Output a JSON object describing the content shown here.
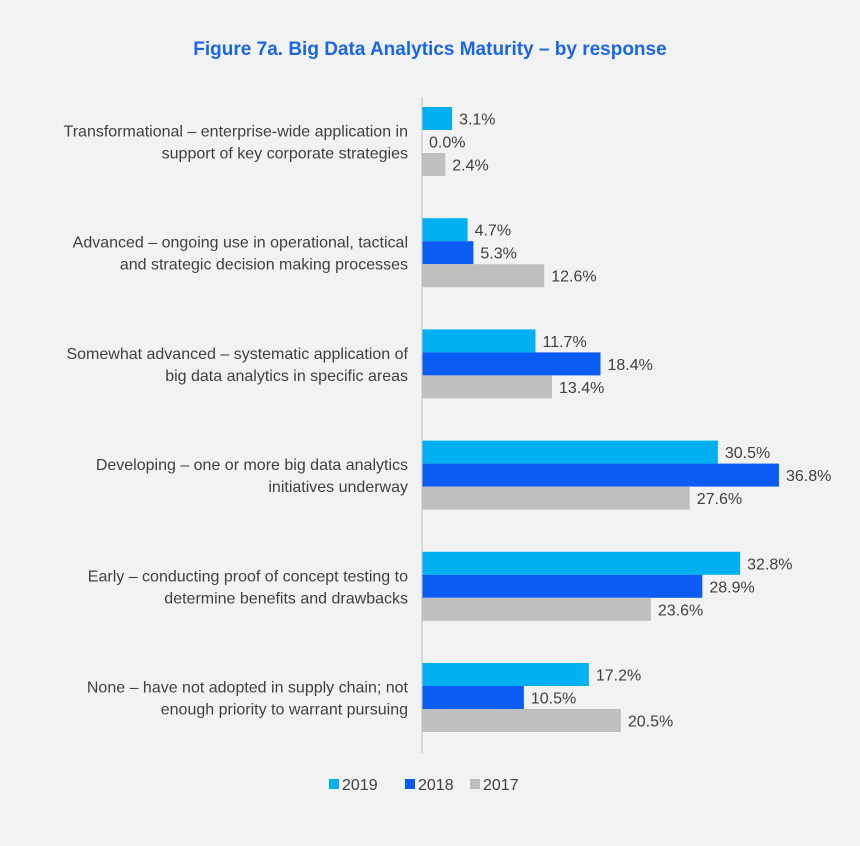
{
  "chart_data": {
    "type": "bar",
    "orientation": "horizontal",
    "title": "Figure 7a. Big Data Analytics Maturity – by response",
    "categories": [
      [
        "Transformational – enterprise-wide application in",
        "support of key corporate strategies"
      ],
      [
        "Advanced – ongoing use in operational, tactical",
        "and strategic decision making processes"
      ],
      [
        "Somewhat advanced – systematic application of",
        "big data analytics in specific areas"
      ],
      [
        "Developing – one or more big data analytics",
        "initiatives underway"
      ],
      [
        "Early – conducting proof of concept testing to",
        "determine benefits and drawbacks"
      ],
      [
        "None  – have not adopted in supply chain; not",
        "enough priority to warrant pursuing"
      ]
    ],
    "series": [
      {
        "name": "2019",
        "color": "#00b0f0",
        "values": [
          3.1,
          4.7,
          11.7,
          30.5,
          32.8,
          17.2
        ]
      },
      {
        "name": "2018",
        "color": "#0a5cf5",
        "values": [
          0.0,
          5.3,
          18.4,
          36.8,
          28.9,
          10.5
        ]
      },
      {
        "name": "2017",
        "color": "#bfbfbf",
        "values": [
          2.4,
          12.6,
          13.4,
          27.6,
          23.6,
          20.5
        ]
      }
    ],
    "value_suffix": "%",
    "xlim": [
      0,
      40
    ],
    "grid": false,
    "legend_position": "bottom"
  },
  "colors": {
    "title": "#1a66e6",
    "label_text": "#404040",
    "axis": "#bfbfbf",
    "background": "#f2f2f2"
  }
}
